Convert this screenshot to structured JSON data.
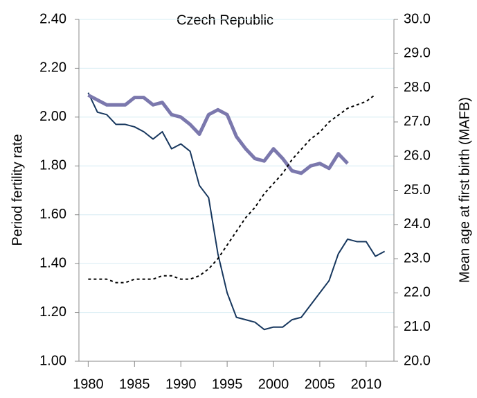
{
  "chart_data": {
    "type": "line",
    "title": "Czech Republic",
    "ylabel": "Period fertility rate",
    "y2label": "Mean age at first birth (MAFB)",
    "x": [
      1980,
      1981,
      1982,
      1983,
      1984,
      1985,
      1986,
      1987,
      1988,
      1989,
      1990,
      1991,
      1992,
      1993,
      1994,
      1995,
      1996,
      1997,
      1998,
      1999,
      2000,
      2001,
      2002,
      2003,
      2004,
      2005,
      2006,
      2007,
      2008,
      2009,
      2010,
      2011,
      2012
    ],
    "xlim": [
      1979,
      2013
    ],
    "xticks": [
      1980,
      1985,
      1990,
      1995,
      2000,
      2005,
      2010
    ],
    "ylim": [
      1.0,
      2.4
    ],
    "yticks": [
      {
        "value": 1.0,
        "label": "1.00"
      },
      {
        "value": 1.2,
        "label": "1.20"
      },
      {
        "value": 1.4,
        "label": "1.40"
      },
      {
        "value": 1.6,
        "label": "1.60"
      },
      {
        "value": 1.8,
        "label": "1.80"
      },
      {
        "value": 2.0,
        "label": "2.00"
      },
      {
        "value": 2.2,
        "label": "2.20"
      },
      {
        "value": 2.4,
        "label": "2.40"
      }
    ],
    "y2lim": [
      20,
      30
    ],
    "y2ticks": [
      {
        "value": 20,
        "label": "20.0"
      },
      {
        "value": 21,
        "label": "21.0"
      },
      {
        "value": 22,
        "label": "22.0"
      },
      {
        "value": 23,
        "label": "23.0"
      },
      {
        "value": 24,
        "label": "24.0"
      },
      {
        "value": 25,
        "label": "25.0"
      },
      {
        "value": 26,
        "label": "26.0"
      },
      {
        "value": 27,
        "label": "27.0"
      },
      {
        "value": 28,
        "label": "28.0"
      },
      {
        "value": 29,
        "label": "29.0"
      },
      {
        "value": 30,
        "label": "30.0"
      }
    ],
    "grid": true,
    "series": [
      {
        "color": "#17375e",
        "width": 2,
        "dash": "none",
        "values": [
          2.1,
          2.02,
          2.01,
          1.97,
          1.97,
          1.96,
          1.94,
          1.91,
          1.94,
          1.87,
          1.89,
          1.86,
          1.72,
          1.67,
          1.44,
          1.28,
          1.18,
          1.17,
          1.16,
          1.13,
          1.14,
          1.14,
          1.17,
          1.18,
          1.23,
          1.28,
          1.33,
          1.44,
          1.5,
          1.49,
          1.49,
          1.43,
          1.45
        ]
      },
      {
        "color": "#7b78ad",
        "width": 5,
        "dash": "none",
        "values": [
          2.09,
          2.07,
          2.05,
          2.05,
          2.05,
          2.08,
          2.08,
          2.05,
          2.06,
          2.01,
          2.0,
          1.97,
          1.93,
          2.01,
          2.03,
          2.01,
          1.92,
          1.87,
          1.83,
          1.82,
          1.87,
          1.83,
          1.78,
          1.77,
          1.8,
          1.81,
          1.79,
          1.85,
          1.81,
          null,
          null,
          null,
          null
        ]
      },
      {
        "color": "#000000",
        "width": 2,
        "dash": "4 4",
        "axis": "y2",
        "values": [
          22.4,
          22.4,
          22.4,
          22.3,
          22.3,
          22.4,
          22.4,
          22.4,
          22.5,
          22.5,
          22.4,
          22.4,
          22.5,
          22.7,
          23.0,
          23.4,
          23.8,
          24.2,
          24.5,
          24.9,
          25.2,
          25.5,
          25.9,
          26.2,
          26.5,
          26.7,
          27.0,
          27.2,
          27.4,
          27.5,
          27.6,
          27.8,
          null
        ]
      }
    ]
  }
}
